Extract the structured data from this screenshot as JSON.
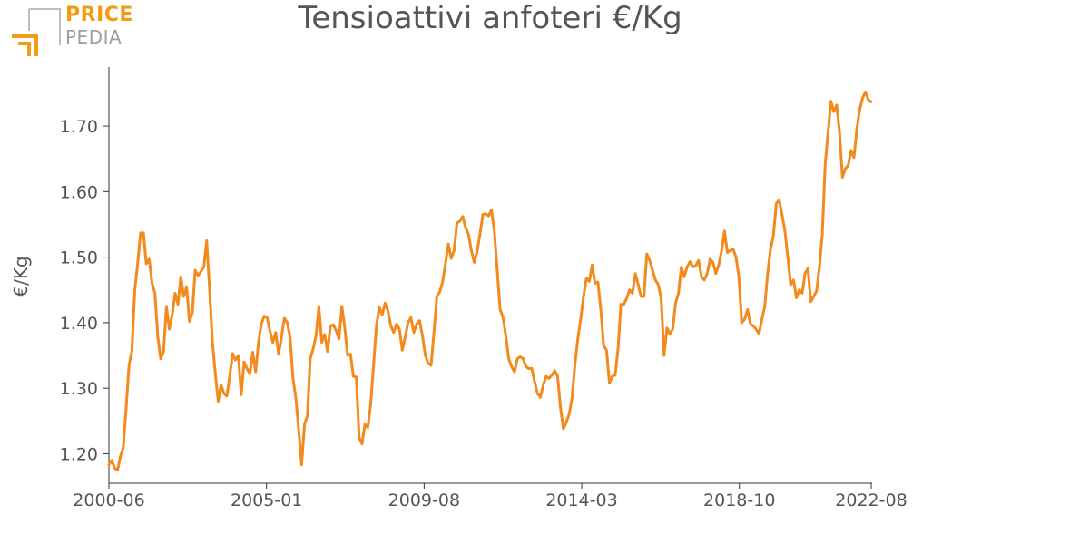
{
  "logo": {
    "line1": "PRICE",
    "line2": "PEDIA",
    "color_orange": "#f39c12",
    "color_grey": "#9e9e9e"
  },
  "chart_data": {
    "type": "line",
    "title": "Tensioattivi anfoteri €/Kg",
    "ylabel": "€/Kg",
    "xlabel": "",
    "x_start": "2000-06",
    "x_end": "2022-08",
    "xticks": [
      "2000-06",
      "2005-01",
      "2009-08",
      "2014-03",
      "2018-10",
      "2022-08"
    ],
    "yticks": [
      "1.20",
      "1.30",
      "1.40",
      "1.50",
      "1.60",
      "1.70"
    ],
    "ylim": [
      1.155,
      1.79
    ],
    "grid": false,
    "line_color": "#f28a1e",
    "series": [
      {
        "values": [
          1.183,
          1.19,
          1.178,
          1.175,
          1.196,
          1.21,
          1.27,
          1.335,
          1.357,
          1.45,
          1.49,
          1.537,
          1.537,
          1.49,
          1.497,
          1.46,
          1.445,
          1.378,
          1.345,
          1.356,
          1.425,
          1.39,
          1.412,
          1.445,
          1.428,
          1.47,
          1.44,
          1.455,
          1.402,
          1.415,
          1.48,
          1.472,
          1.478,
          1.485,
          1.525,
          1.45,
          1.37,
          1.322,
          1.28,
          1.305,
          1.292,
          1.288,
          1.318,
          1.353,
          1.343,
          1.35,
          1.29,
          1.34,
          1.33,
          1.322,
          1.355,
          1.325,
          1.37,
          1.398,
          1.41,
          1.408,
          1.387,
          1.37,
          1.385,
          1.352,
          1.378,
          1.407,
          1.4,
          1.377,
          1.315,
          1.285,
          1.235,
          1.183,
          1.245,
          1.258,
          1.345,
          1.36,
          1.38,
          1.425,
          1.37,
          1.382,
          1.356,
          1.395,
          1.397,
          1.388,
          1.375,
          1.425,
          1.392,
          1.35,
          1.352,
          1.318,
          1.317,
          1.225,
          1.215,
          1.245,
          1.24,
          1.275,
          1.335,
          1.395,
          1.423,
          1.412,
          1.43,
          1.418,
          1.395,
          1.385,
          1.398,
          1.39,
          1.358,
          1.378,
          1.4,
          1.408,
          1.385,
          1.398,
          1.403,
          1.38,
          1.35,
          1.338,
          1.335,
          1.385,
          1.44,
          1.447,
          1.462,
          1.49,
          1.52,
          1.498,
          1.51,
          1.552,
          1.555,
          1.562,
          1.545,
          1.535,
          1.51,
          1.492,
          1.508,
          1.535,
          1.565,
          1.566,
          1.563,
          1.572,
          1.54,
          1.48,
          1.42,
          1.408,
          1.38,
          1.345,
          1.333,
          1.325,
          1.345,
          1.348,
          1.345,
          1.333,
          1.33,
          1.33,
          1.31,
          1.292,
          1.286,
          1.305,
          1.318,
          1.315,
          1.32,
          1.327,
          1.318,
          1.27,
          1.238,
          1.248,
          1.26,
          1.285,
          1.335,
          1.375,
          1.405,
          1.44,
          1.468,
          1.463,
          1.488,
          1.46,
          1.462,
          1.42,
          1.365,
          1.358,
          1.308,
          1.318,
          1.32,
          1.36,
          1.428,
          1.428,
          1.437,
          1.45,
          1.445,
          1.475,
          1.458,
          1.44,
          1.44,
          1.505,
          1.495,
          1.48,
          1.465,
          1.458,
          1.437,
          1.35,
          1.392,
          1.383,
          1.39,
          1.43,
          1.445,
          1.485,
          1.47,
          1.485,
          1.493,
          1.485,
          1.487,
          1.495,
          1.47,
          1.465,
          1.475,
          1.497,
          1.492,
          1.475,
          1.488,
          1.51,
          1.54,
          1.507,
          1.51,
          1.512,
          1.5,
          1.47,
          1.4,
          1.405,
          1.42,
          1.398,
          1.395,
          1.39,
          1.383,
          1.405,
          1.425,
          1.475,
          1.512,
          1.533,
          1.582,
          1.587,
          1.565,
          1.54,
          1.5,
          1.458,
          1.465,
          1.438,
          1.45,
          1.445,
          1.475,
          1.483,
          1.432,
          1.44,
          1.448,
          1.485,
          1.535,
          1.642,
          1.69,
          1.738,
          1.722,
          1.732,
          1.69,
          1.622,
          1.635,
          1.64,
          1.663,
          1.652,
          1.695,
          1.725,
          1.743,
          1.752,
          1.74,
          1.737
        ]
      }
    ]
  }
}
